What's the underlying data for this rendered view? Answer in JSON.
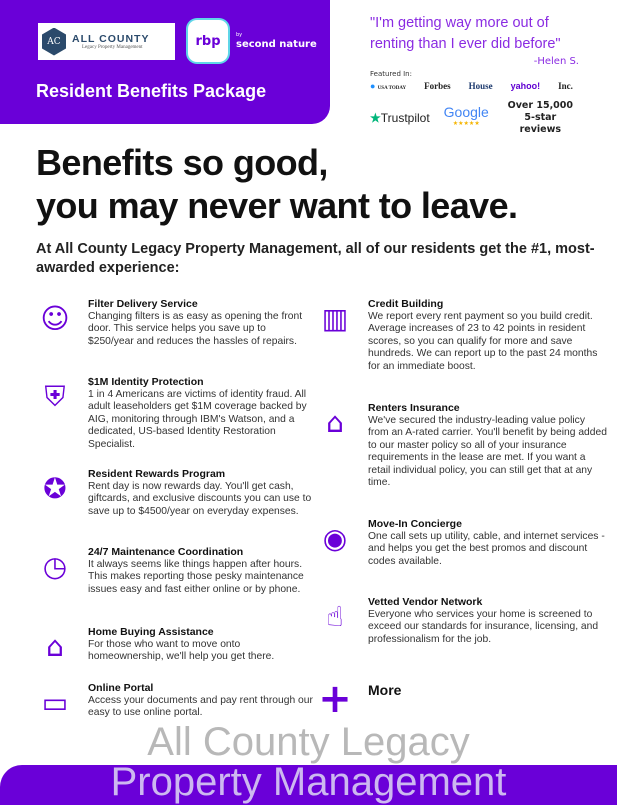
{
  "header": {
    "company_logo_name": "ALL COUNTY",
    "company_logo_sub": "Legacy Property Management",
    "company_logo_mark": "AC",
    "rbp_logo": "rbp",
    "partner_by": "by",
    "partner_name": "second nature",
    "title": "Resident Benefits Package",
    "quote": "\"I'm getting way more out of renting than I ever did before\"",
    "quote_author": "-Helen S.",
    "featured_label": "Featured In:",
    "press": [
      "USA TODAY",
      "Forbes",
      "House",
      "yahoo!",
      "Inc."
    ],
    "trustpilot": "Trustpilot",
    "google": "Google",
    "google_stars": "★★★★★",
    "reviews": "Over 15,000 5-star reviews"
  },
  "headline": [
    "Benefits so good,",
    "you may never want to leave."
  ],
  "intro": "At All County Legacy Property Management, all of our residents get the #1, most-awarded experience:",
  "benefits_left": [
    {
      "icon": "filter-box-icon",
      "title": "Filter Delivery Service",
      "text": "Changing filters is as easy as opening the front door. This service helps you save up to $250/year and reduces the hassles of repairs."
    },
    {
      "icon": "id-shield-icon",
      "title": "$1M Identity Protection",
      "text": "1 in 4 Americans are victims of identity fraud. All adult leaseholders get $1M coverage backed by AIG, monitoring through IBM's Watson, and a dedicated, US-based Identity Restoration Specialist."
    },
    {
      "icon": "award-ribbon-icon",
      "title": "Resident Rewards Program",
      "text": "Rent day is now rewards day. You'll get cash, giftcards, and exclusive discounts you can use to save up to $4500/year on everyday expenses."
    },
    {
      "icon": "clock-icon",
      "title": "24/7 Maintenance Coordination",
      "text": "It always seems like things happen after hours. This makes reporting those pesky maintenance issues easy and fast either online or by phone."
    },
    {
      "icon": "house-sign-icon",
      "title": "Home Buying Assistance",
      "text": "For those who want to move onto homeownership, we'll help you get there."
    },
    {
      "icon": "laptop-icon",
      "title": "Online Portal",
      "text": "Access your documents and pay rent through our easy to use online portal."
    }
  ],
  "benefits_right": [
    {
      "icon": "credit-chart-icon",
      "title": "Credit Building",
      "text": "We report every rent payment so you build credit. Average increases of 23 to 42 points in resident scores, so you can qualify for more and save hundreds. We can report up to the past 24 months for an immediate boost."
    },
    {
      "icon": "insured-house-icon",
      "title": "Renters Insurance",
      "text": "We've secured the industry-leading value policy from an A-rated carrier. You'll benefit by being added to our master policy so all of your insurance requirements in the lease are met. If you want a retail individual policy, you can still get that at any time."
    },
    {
      "icon": "thermostat-icon",
      "title": "Move-In Concierge",
      "text": "One call sets up utility, cable, and internet services - and helps you get the best promos and discount codes available."
    },
    {
      "icon": "thumbs-up-icon",
      "title": "Vetted Vendor Network",
      "text": "Everyone who services your home is screened to exceed our standards for insurance, licensing, and professionalism for the job."
    },
    {
      "icon": "plus-icon",
      "title": "More",
      "text": ""
    }
  ],
  "watermark": [
    "All County Legacy",
    "Property Management"
  ],
  "colors": {
    "brand_purple": "#6a00d8",
    "quote_purple": "#8a2be2",
    "accent_cyan": "#5fd6e8"
  }
}
